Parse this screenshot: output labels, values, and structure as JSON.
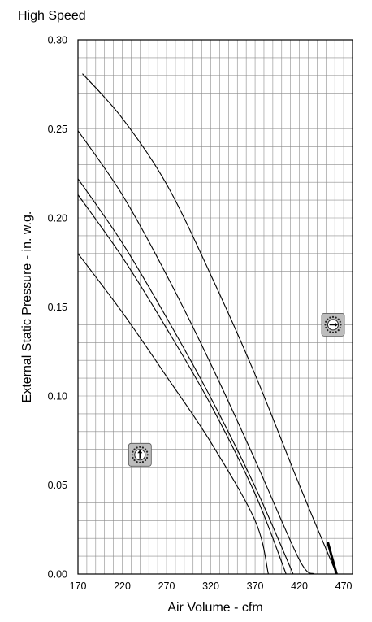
{
  "chart_data": {
    "type": "line",
    "title": "High Speed",
    "xlabel": "Air Volume - cfm",
    "ylabel": "External Static Pressure - in. w.g.",
    "xlim": [
      170,
      480
    ],
    "ylim": [
      0,
      0.3
    ],
    "x_ticks": [
      "170",
      "220",
      "270",
      "320",
      "370",
      "420",
      "470"
    ],
    "y_ticks": [
      "0.00",
      "0.05",
      "0.10",
      "0.15",
      "0.20",
      "0.25",
      "0.30"
    ],
    "grid": true,
    "series": [
      {
        "points": [
          [
            170,
            0.18
          ],
          [
            220,
            0.147
          ],
          [
            270,
            0.111
          ],
          [
            320,
            0.074
          ],
          [
            370,
            0.03
          ],
          [
            385,
            0.0
          ]
        ]
      },
      {
        "points": [
          [
            170,
            0.213
          ],
          [
            220,
            0.178
          ],
          [
            270,
            0.138
          ],
          [
            320,
            0.095
          ],
          [
            370,
            0.045
          ],
          [
            405,
            0.0
          ]
        ]
      },
      {
        "points": [
          [
            170,
            0.222
          ],
          [
            220,
            0.186
          ],
          [
            270,
            0.144
          ],
          [
            320,
            0.099
          ],
          [
            370,
            0.049
          ],
          [
            413,
            0.0
          ]
        ]
      },
      {
        "points": [
          [
            170,
            0.249
          ],
          [
            220,
            0.213
          ],
          [
            270,
            0.168
          ],
          [
            320,
            0.118
          ],
          [
            370,
            0.064
          ],
          [
            420,
            0.008
          ],
          [
            437,
            0.0
          ]
        ]
      },
      {
        "points": [
          [
            175,
            0.281
          ],
          [
            220,
            0.256
          ],
          [
            270,
            0.219
          ],
          [
            320,
            0.168
          ],
          [
            370,
            0.112
          ],
          [
            420,
            0.05
          ],
          [
            462,
            0.0
          ]
        ]
      }
    ],
    "annotations": [
      {
        "type": "dial-icon",
        "pointer": "right",
        "x": 458,
        "y": 0.14
      },
      {
        "type": "dial-icon",
        "pointer": "up",
        "x": 240,
        "y": 0.067
      }
    ]
  }
}
